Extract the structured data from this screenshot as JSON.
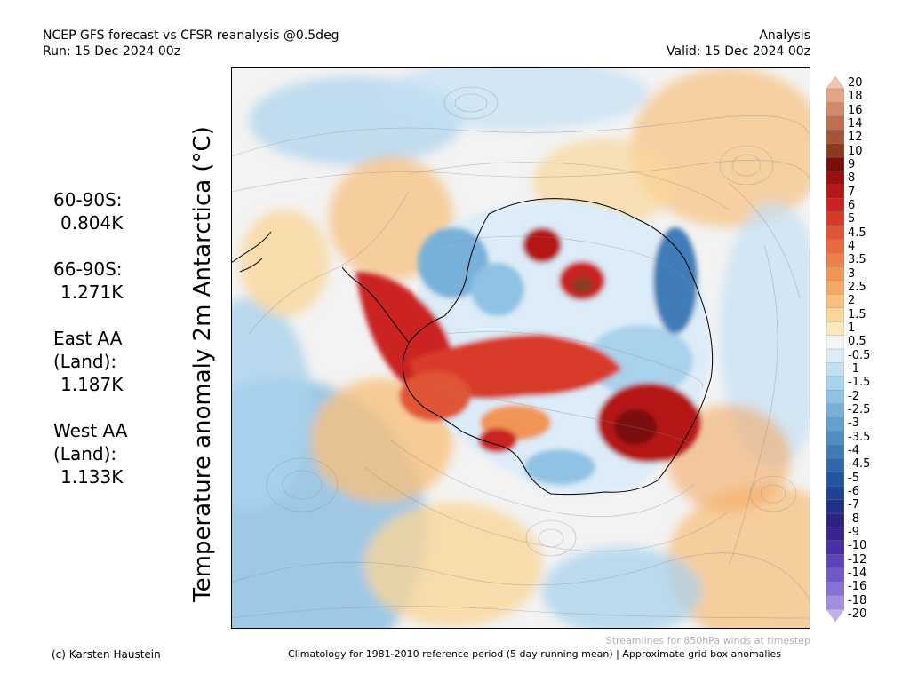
{
  "header": {
    "title": "NCEP GFS forecast vs CFSR reanalysis @0.5deg",
    "run": "Run: 15 Dec 2024 00z",
    "mode": "Analysis",
    "valid": "Valid: 15 Dec 2024 00z"
  },
  "stats": [
    {
      "region": "60-90S:",
      "value": "0.804K"
    },
    {
      "region": "66-90S:",
      "value": "1.271K"
    },
    {
      "region": "East AA (Land):",
      "value": "1.187K"
    },
    {
      "region": "West AA (Land):",
      "value": "1.133K"
    }
  ],
  "axis_label": "Temperature anomaly 2m Antarctica (°C)",
  "colorbar": {
    "labels": [
      "20",
      "18",
      "16",
      "14",
      "12",
      "10",
      "9",
      "8",
      "7",
      "6",
      "5",
      "4.5",
      "4",
      "3.5",
      "3",
      "2.5",
      "2",
      "1.5",
      "1",
      "0.5",
      "-0.5",
      "-1",
      "-1.5",
      "-2",
      "-2.5",
      "-3",
      "-3.5",
      "-4",
      "-4.5",
      "-5",
      "-6",
      "-7",
      "-8",
      "-9",
      "-10",
      "-12",
      "-14",
      "-16",
      "-18",
      "-20"
    ],
    "colors": [
      "#f3c3b0",
      "#e2a587",
      "#d18a6a",
      "#bf6f50",
      "#a65436",
      "#8a3a20",
      "#7a0d0d",
      "#9a1010",
      "#b51818",
      "#cb2222",
      "#d83a2a",
      "#e05535",
      "#e66a3e",
      "#ed8049",
      "#f19556",
      "#f4aa66",
      "#f7c07d",
      "#f9d698",
      "#fbe9bd",
      "#f5f5f5",
      "#dcecf8",
      "#c3e0f3",
      "#a9d2ec",
      "#8fc2e3",
      "#77b1d9",
      "#62a0ce",
      "#4f8dc2",
      "#3f7bb7",
      "#3068ac",
      "#2455a0",
      "#1f4294",
      "#21318a",
      "#2a2480",
      "#3a2492",
      "#4a30a8",
      "#5c42bb",
      "#7058c9",
      "#8872d5",
      "#a28edf",
      "#c2b0ea"
    ]
  },
  "footer": {
    "credit": "(c) Karsten Haustein",
    "streamlines_note": "Streamlines for 850hPa winds at timestep",
    "climatology_note": "Climatology for 1981-2010 reference period (5 day running mean) | Approximate grid box anomalies"
  }
}
